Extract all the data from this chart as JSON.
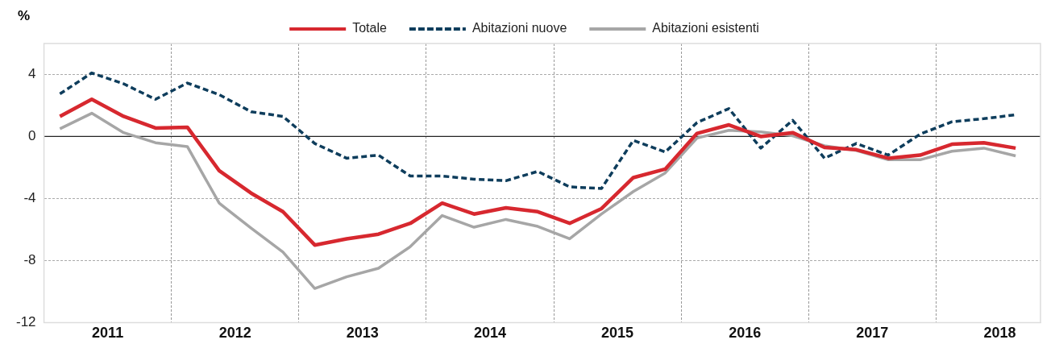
{
  "chart_data": {
    "type": "line",
    "ylabel": "%",
    "x": [
      2011.125,
      2011.375,
      2011.625,
      2011.875,
      2012.125,
      2012.375,
      2012.625,
      2012.875,
      2013.125,
      2013.375,
      2013.625,
      2013.875,
      2014.125,
      2014.375,
      2014.625,
      2014.875,
      2015.125,
      2015.375,
      2015.625,
      2015.875,
      2016.125,
      2016.375,
      2016.625,
      2016.875,
      2017.125,
      2017.375,
      2017.625,
      2017.875,
      2018.125,
      2018.375,
      2018.625
    ],
    "series": [
      {
        "name": "Totale",
        "color": "#d7282f",
        "line_style": "solid",
        "values": [
          1.3,
          2.4,
          1.3,
          0.55,
          0.6,
          -2.2,
          -3.65,
          -4.85,
          -7.0,
          -6.6,
          -6.3,
          -5.6,
          -4.3,
          -5.0,
          -4.6,
          -4.85,
          -5.6,
          -4.65,
          -2.65,
          -2.1,
          0.2,
          0.75,
          0.0,
          0.25,
          -0.7,
          -0.85,
          -1.4,
          -1.2,
          -0.5,
          -0.4,
          -0.75
        ]
      },
      {
        "name": "Abitazioni nuove",
        "color": "#0e3d5c",
        "line_style": "dashed",
        "values": [
          2.75,
          4.1,
          3.4,
          2.4,
          3.45,
          2.7,
          1.6,
          1.3,
          -0.45,
          -1.4,
          -1.2,
          -2.55,
          -2.55,
          -2.75,
          -2.85,
          -2.25,
          -3.25,
          -3.35,
          -0.25,
          -1.0,
          0.9,
          1.8,
          -0.75,
          1.05,
          -1.4,
          -0.45,
          -1.2,
          0.15,
          0.95,
          1.15,
          1.4
        ]
      },
      {
        "name": "Abitazioni esistenti",
        "color": "#a6a6a6",
        "line_style": "solid",
        "values": [
          0.5,
          1.5,
          0.25,
          -0.4,
          -0.65,
          -4.3,
          -5.9,
          -7.45,
          -9.8,
          -9.05,
          -8.5,
          -7.1,
          -5.1,
          -5.85,
          -5.35,
          -5.8,
          -6.6,
          -5.0,
          -3.55,
          -2.35,
          -0.1,
          0.4,
          0.3,
          0.05,
          -0.6,
          -0.9,
          -1.5,
          -1.5,
          -0.95,
          -0.75,
          -1.25
        ]
      }
    ],
    "xlim": [
      2011,
      2018.82
    ],
    "xticks": [
      {
        "value": 2011.5,
        "label": "2011"
      },
      {
        "value": 2012,
        "label": null
      },
      {
        "value": 2012.5,
        "label": "2012"
      },
      {
        "value": 2013,
        "label": null
      },
      {
        "value": 2013.5,
        "label": "2013"
      },
      {
        "value": 2014,
        "label": null
      },
      {
        "value": 2014.5,
        "label": "2014"
      },
      {
        "value": 2015,
        "label": null
      },
      {
        "value": 2015.5,
        "label": "2015"
      },
      {
        "value": 2016,
        "label": null
      },
      {
        "value": 2016.5,
        "label": "2016"
      },
      {
        "value": 2017,
        "label": null
      },
      {
        "value": 2017.5,
        "label": "2017"
      },
      {
        "value": 2018,
        "label": null
      },
      {
        "value": 2018.5,
        "label": "2018"
      }
    ],
    "ylim": [
      -12,
      6
    ],
    "yticks": [
      -12,
      -8,
      -4,
      0,
      4
    ],
    "ref_lines": [
      {
        "axis": "y",
        "value": 0,
        "color": "#222222"
      }
    ],
    "grid": true,
    "legend": "top",
    "marker": "none"
  }
}
